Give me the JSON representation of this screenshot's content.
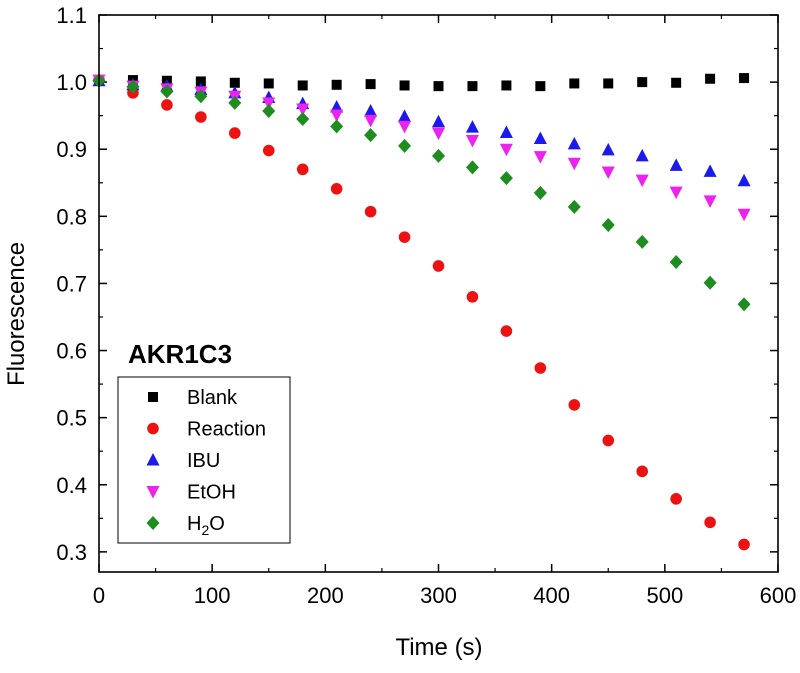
{
  "chart_data": {
    "type": "scatter",
    "title": "",
    "xlabel": "Time (s)",
    "ylabel": "Fluorescence",
    "xlim": [
      0,
      600
    ],
    "ylim": [
      0.27,
      1.1
    ],
    "xticks": [
      0,
      100,
      200,
      300,
      400,
      500,
      600
    ],
    "yticks": [
      0.3,
      0.4,
      0.5,
      0.6,
      0.7,
      0.8,
      0.9,
      1.0,
      1.1
    ],
    "xtick_labels": [
      "0",
      "100",
      "200",
      "300",
      "400",
      "500",
      "600"
    ],
    "ytick_labels": [
      "0.3",
      "0.4",
      "0.5",
      "0.6",
      "0.7",
      "0.8",
      "0.9",
      "1.0",
      "1.1"
    ],
    "annotation": "AKR1C3",
    "legend_position": "lower-left",
    "x": [
      0,
      30,
      60,
      90,
      120,
      150,
      180,
      210,
      240,
      270,
      300,
      330,
      360,
      390,
      420,
      450,
      480,
      510,
      540,
      570
    ],
    "series": [
      {
        "name": "Blank",
        "marker": "square",
        "color": "#000000",
        "values": [
          1.003,
          1.003,
          1.002,
          1.001,
          0.999,
          0.998,
          0.995,
          0.996,
          0.997,
          0.995,
          0.994,
          0.994,
          0.995,
          0.994,
          0.998,
          0.998,
          1.0,
          0.999,
          1.005,
          1.006
        ]
      },
      {
        "name": "Reaction",
        "marker": "circle",
        "color": "#ee1111",
        "values": [
          1.003,
          0.984,
          0.966,
          0.948,
          0.924,
          0.898,
          0.87,
          0.841,
          0.807,
          0.769,
          0.726,
          0.68,
          0.629,
          0.574,
          0.519,
          0.466,
          0.42,
          0.379,
          0.344,
          0.311
        ]
      },
      {
        "name": "IBU",
        "marker": "triangle-up",
        "color": "#1a1aee",
        "values": [
          1.002,
          0.996,
          0.994,
          0.989,
          0.984,
          0.977,
          0.968,
          0.963,
          0.957,
          0.949,
          0.941,
          0.933,
          0.925,
          0.916,
          0.908,
          0.899,
          0.89,
          0.876,
          0.867,
          0.853
        ]
      },
      {
        "name": "EtOH",
        "marker": "triangle-down",
        "color": "#ee22ee",
        "values": [
          1.003,
          0.994,
          0.99,
          0.985,
          0.979,
          0.969,
          0.96,
          0.951,
          0.943,
          0.934,
          0.924,
          0.913,
          0.9,
          0.889,
          0.879,
          0.866,
          0.854,
          0.836,
          0.823,
          0.803
        ]
      },
      {
        "name": "H",
        "name_subscript": "2",
        "name_suffix": "O",
        "marker": "diamond",
        "color": "#1e8c1e",
        "values": [
          1.002,
          0.993,
          0.986,
          0.979,
          0.969,
          0.957,
          0.945,
          0.934,
          0.921,
          0.905,
          0.89,
          0.873,
          0.857,
          0.835,
          0.814,
          0.787,
          0.762,
          0.732,
          0.701,
          0.669
        ]
      }
    ]
  }
}
